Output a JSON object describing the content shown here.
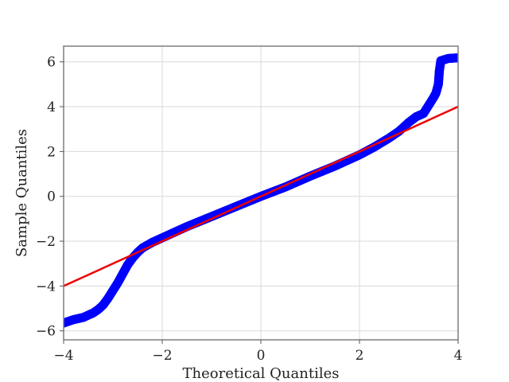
{
  "chart_data": {
    "type": "scatter",
    "title": "",
    "xlabel": "Theoretical Quantiles",
    "ylabel": "Sample Quantiles",
    "xlim": [
      -4,
      4
    ],
    "ylim": [
      -6.4,
      6.7
    ],
    "xticks": [
      -4,
      -2,
      0,
      2,
      4
    ],
    "yticks": [
      -6,
      -4,
      -2,
      0,
      2,
      4,
      6
    ],
    "xtick_labels": [
      "−4",
      "−2",
      "0",
      "2",
      "4"
    ],
    "ytick_labels": [
      "−6",
      "−4",
      "−2",
      "0",
      "2",
      "4",
      "6"
    ],
    "grid": true,
    "legend": "none",
    "series": [
      {
        "kind": "points",
        "color": "#0000ff",
        "points": [
          [
            -4.0,
            -5.65
          ],
          [
            -3.8,
            -5.5
          ],
          [
            -3.6,
            -5.4
          ],
          [
            -3.4,
            -5.2
          ],
          [
            -3.3,
            -5.05
          ],
          [
            -3.2,
            -4.85
          ],
          [
            -3.1,
            -4.55
          ],
          [
            -3.0,
            -4.2
          ],
          [
            -2.9,
            -3.85
          ],
          [
            -2.8,
            -3.45
          ],
          [
            -2.7,
            -3.05
          ],
          [
            -2.6,
            -2.75
          ],
          [
            -2.5,
            -2.5
          ],
          [
            -2.4,
            -2.3
          ],
          [
            -2.2,
            -2.05
          ],
          [
            -2.0,
            -1.85
          ],
          [
            -1.8,
            -1.65
          ],
          [
            -1.5,
            -1.35
          ],
          [
            -1.0,
            -0.9
          ],
          [
            -0.5,
            -0.45
          ],
          [
            0.0,
            0.0
          ],
          [
            0.5,
            0.42
          ],
          [
            1.0,
            0.9
          ],
          [
            1.5,
            1.35
          ],
          [
            2.0,
            1.85
          ],
          [
            2.3,
            2.2
          ],
          [
            2.6,
            2.6
          ],
          [
            2.8,
            2.9
          ],
          [
            3.0,
            3.3
          ],
          [
            3.15,
            3.55
          ],
          [
            3.3,
            3.7
          ],
          [
            3.4,
            4.05
          ],
          [
            3.5,
            4.4
          ],
          [
            3.55,
            4.6
          ],
          [
            3.6,
            5.0
          ],
          [
            3.62,
            5.6
          ],
          [
            3.65,
            6.05
          ],
          [
            3.8,
            6.15
          ],
          [
            4.0,
            6.18
          ]
        ]
      },
      {
        "kind": "reference-line",
        "color": "#ee0000",
        "x": [
          -4,
          4
        ],
        "y": [
          -4,
          4
        ]
      }
    ]
  }
}
